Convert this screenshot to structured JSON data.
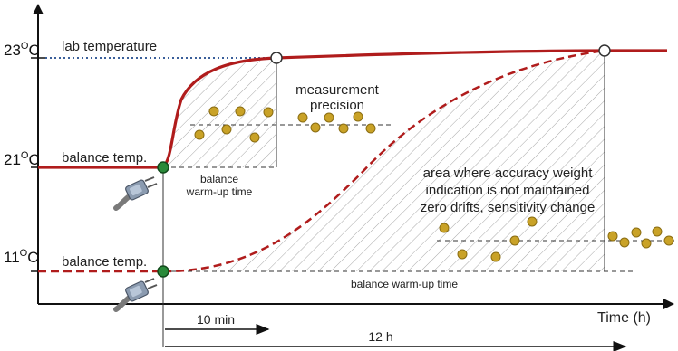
{
  "y_ticks": [
    {
      "label_base": "23",
      "label_sup": "O",
      "label_unit": "C"
    },
    {
      "label_base": "21",
      "label_sup": "O",
      "label_unit": "C"
    },
    {
      "label_base": "11",
      "label_sup": "O",
      "label_unit": "C"
    }
  ],
  "labels": {
    "lab_temperature": "lab temperature",
    "balance_temp_upper": "balance temp.",
    "balance_temp_lower": "balance temp.",
    "measurement_precision_line1": "measurement",
    "measurement_precision_line2": "precision",
    "warmup_short_line1": "balance",
    "warmup_short_line2": "warm-up time",
    "area_line1": "area where accuracy weight",
    "area_line2": "indication is not maintained",
    "area_line3": "zero drifts, sensitivity change",
    "warmup_long": "balance warm-up time",
    "x_axis": "Time (h)",
    "arrow_10min": "10 min",
    "arrow_12h": "12 h"
  },
  "icons": {
    "plug_upper": "power-plug-icon",
    "plug_lower": "power-plug-icon"
  },
  "colors": {
    "curve": "#b01c1c",
    "dot": "#c9a227",
    "dot_stroke": "#8a6d12",
    "start_marker": "#2a8a3a",
    "lab_line": "#3a5f9a",
    "hatch": "#9a9a9a"
  }
}
